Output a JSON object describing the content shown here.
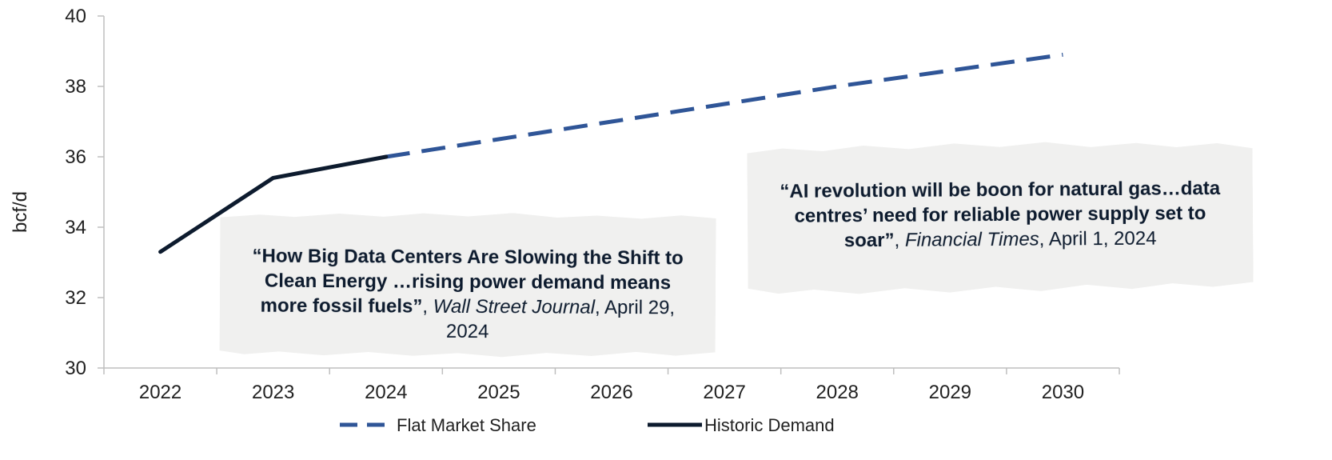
{
  "chart_data": {
    "type": "line",
    "xlabel": "",
    "ylabel": "bcf/d",
    "ylim": [
      30,
      40
    ],
    "yticks": [
      30,
      32,
      34,
      36,
      38,
      40
    ],
    "categories": [
      "2022",
      "2023",
      "2024",
      "2025",
      "2026",
      "2027",
      "2028",
      "2029",
      "2030"
    ],
    "grid": false,
    "legend_position": "bottom",
    "series": [
      {
        "name": "Flat Market Share",
        "style": "dashed",
        "color": "#2f5597",
        "x": [
          "2024",
          "2025",
          "2026",
          "2027",
          "2028",
          "2029",
          "2030"
        ],
        "values": [
          36.0,
          36.5,
          37.0,
          37.5,
          38.0,
          38.45,
          38.9
        ]
      },
      {
        "name": "Historic Demand",
        "style": "solid",
        "color": "#0d1b2e",
        "x": [
          "2022",
          "2023",
          "2023.5",
          "2024"
        ],
        "values": [
          33.3,
          35.4,
          35.7,
          36.0
        ]
      }
    ],
    "annotations": [
      {
        "id": "wsj",
        "quote_bold": "“How Big Data Centers Are Slowing the Shift to Clean Energy …rising power demand means more fossil fuels”",
        "sep1": ", ",
        "source": "Wall Street Journal",
        "sep2": ", ",
        "date": "April 29, 2024"
      },
      {
        "id": "ft",
        "quote_bold": "“AI revolution will be boon for natural gas…data centres’ need for reliable power supply set to soar”",
        "sep1": ", ",
        "source": "Financial Times",
        "sep2": ", ",
        "date": "April 1, 2024"
      }
    ]
  }
}
